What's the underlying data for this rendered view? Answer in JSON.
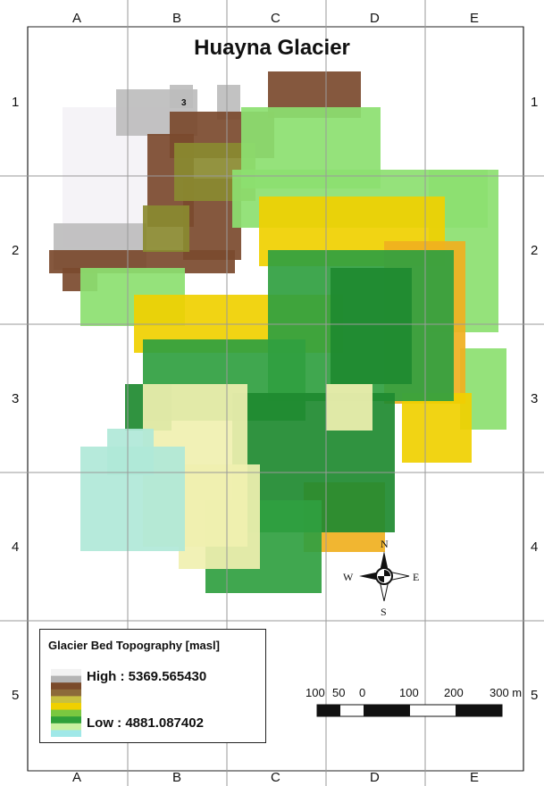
{
  "map": {
    "title": "Huayna Glacier",
    "marker_label": "3",
    "columns": [
      "A",
      "B",
      "C",
      "D",
      "E"
    ],
    "rows": [
      "1",
      "2",
      "3",
      "4",
      "5"
    ]
  },
  "legend": {
    "title": "Glacier Bed Topography [masl]",
    "high_label": "High : 5369.565430",
    "low_label": "Low : 4881.087402",
    "ramp_colors": [
      "#f2f2f2",
      "#b4b4b4",
      "#7a4a2a",
      "#8c6a3a",
      "#c8c040",
      "#f0d000",
      "#7ac840",
      "#2ea03a",
      "#c8f0a0",
      "#a0e8e8"
    ]
  },
  "north_arrow": {
    "labels": {
      "n": "N",
      "s": "S",
      "e": "E",
      "w": "W"
    }
  },
  "scale_bar": {
    "labels": [
      "100",
      "50",
      "0",
      "100",
      "200",
      "300 m"
    ]
  },
  "colors": {
    "white_snow": "#f4f2f6",
    "grey_high": "#bdbdbd",
    "brown": "#7b4a2e",
    "olive": "#8a8a30",
    "yellow": "#f0d000",
    "orange": "#f0b020",
    "light_green": "#8ce070",
    "green": "#30a040",
    "dark_green": "#1e8a30",
    "pale_yellow": "#f0f0b0",
    "pale_cyan": "#b0e8d8"
  }
}
